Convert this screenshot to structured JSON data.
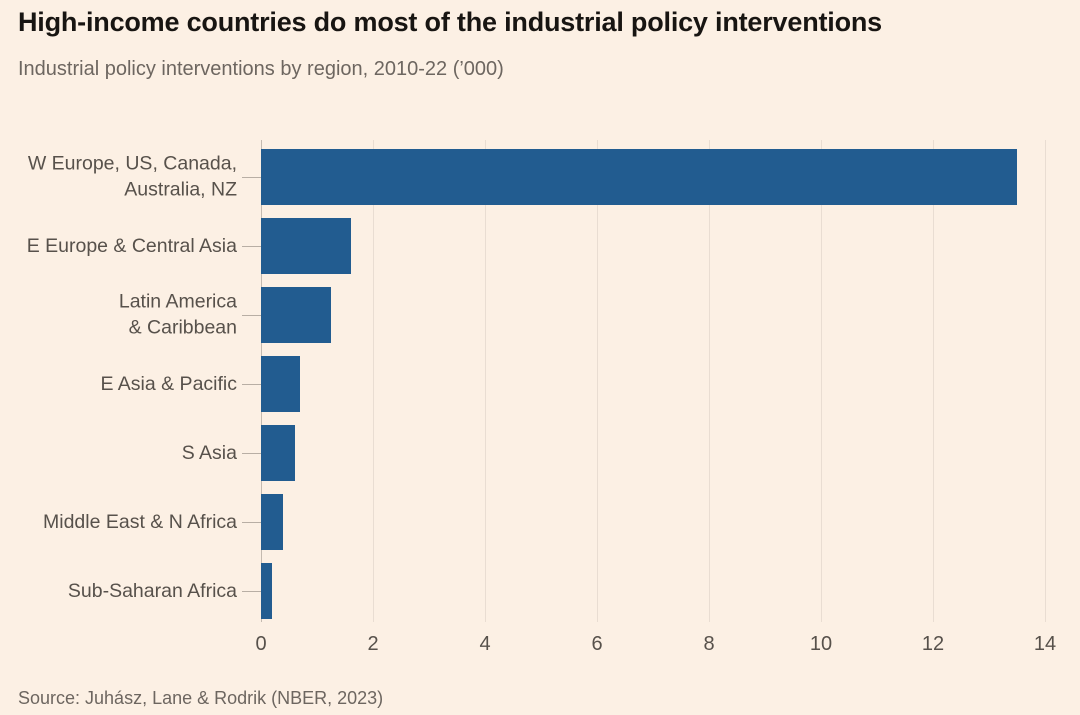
{
  "header": {
    "title": "High-income countries do most of the industrial policy interventions",
    "subtitle": "Industrial policy interventions by region, 2010-22 (’000)"
  },
  "chart_data": {
    "type": "bar",
    "orientation": "horizontal",
    "title": "High-income countries do most of the industrial policy interventions",
    "subtitle": "Industrial policy interventions by region, 2010-22 (’000)",
    "categories": [
      "W Europe, US, Canada,\nAustralia, NZ",
      "E Europe & Central Asia",
      "Latin America\n& Caribbean",
      "E Asia & Pacific",
      "S Asia",
      "Middle East & N Africa",
      "Sub-Saharan Africa"
    ],
    "values": [
      13.5,
      1.6,
      1.25,
      0.7,
      0.6,
      0.4,
      0.2
    ],
    "xlabel": "",
    "ylabel": "",
    "xlim": [
      0,
      14
    ],
    "xticks": [
      "0",
      "2",
      "4",
      "6",
      "8",
      "10",
      "12",
      "14"
    ],
    "grid": true,
    "legend": "none",
    "bar_color": "#225c90",
    "background_color": "#fcf0e4",
    "gridline_color": "#e9ddd2"
  },
  "footer": {
    "source": "Source: Juhász, Lane & Rodrik (NBER, 2023)"
  }
}
